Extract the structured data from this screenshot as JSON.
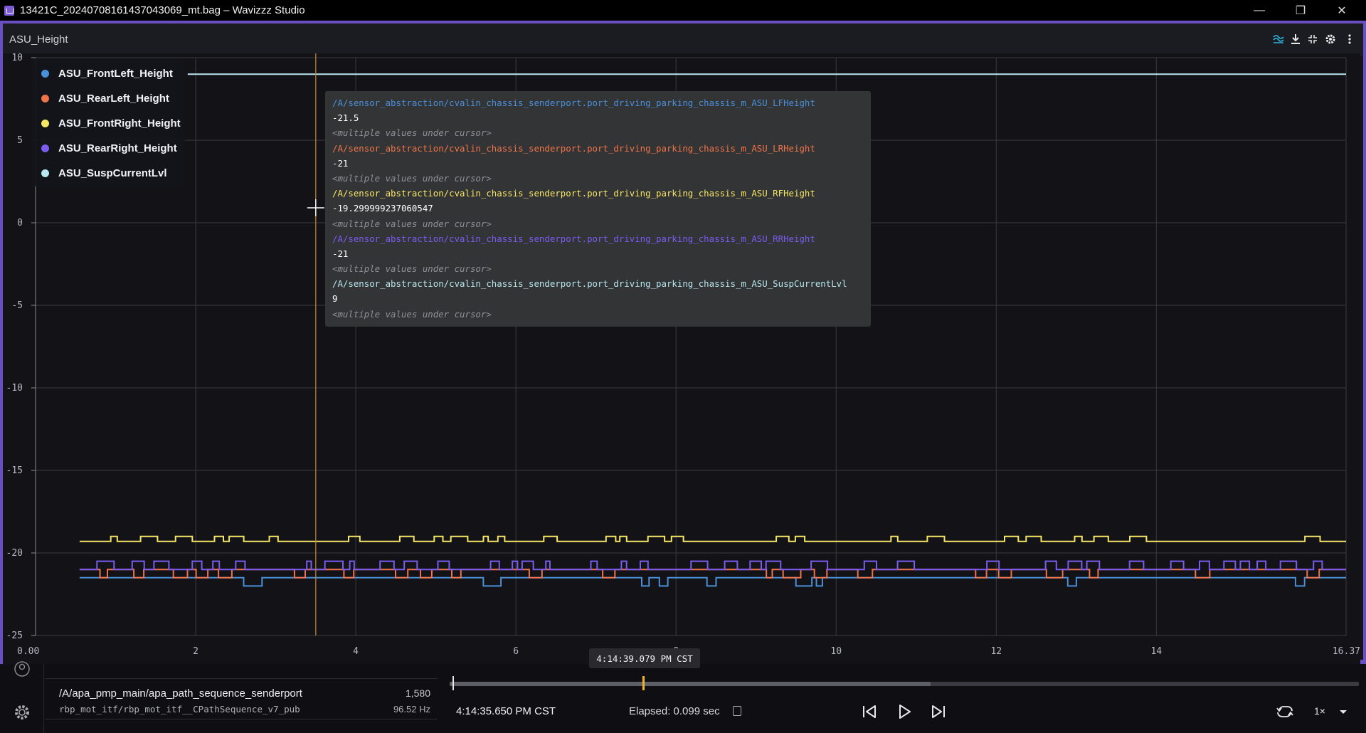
{
  "window": {
    "title": "13421C_20240708161437043069_mt.bag – Wavizzz Studio",
    "minimize_glyph": "—",
    "restore_glyph": "❐",
    "close_glyph": "✕"
  },
  "panel": {
    "title": "ASU_Height",
    "toolbar_icons": [
      "series-icon",
      "download-icon",
      "fullscreen-icon",
      "settings-icon",
      "more-icon"
    ]
  },
  "legend": {
    "items": [
      {
        "label": "ASU_FrontLeft_Height",
        "color": "#4a90d9"
      },
      {
        "label": "ASU_RearLeft_Height",
        "color": "#f0734a"
      },
      {
        "label": "ASU_FrontRight_Height",
        "color": "#f5e663"
      },
      {
        "label": "ASU_RearRight_Height",
        "color": "#7b5cf0"
      },
      {
        "label": "ASU_SuspCurrentLvl",
        "color": "#b8e7ef"
      }
    ]
  },
  "tooltip": {
    "entries": [
      {
        "path": "/A/sensor_abstraction/cvalin_chassis_senderport.port_driving_parking_chassis_m_ASU_LFHeight",
        "value": "-21.5",
        "note": "<multiple values under cursor>",
        "color": "#4a90d9"
      },
      {
        "path": "/A/sensor_abstraction/cvalin_chassis_senderport.port_driving_parking_chassis_m_ASU_LRHeight",
        "value": "-21",
        "note": "<multiple values under cursor>",
        "color": "#f0734a"
      },
      {
        "path": "/A/sensor_abstraction/cvalin_chassis_senderport.port_driving_parking_chassis_m_ASU_RFHeight",
        "value": "-19.299999237060547",
        "note": "<multiple values under cursor>",
        "color": "#f5e663"
      },
      {
        "path": "/A/sensor_abstraction/cvalin_chassis_senderport.port_driving_parking_chassis_m_ASU_RRHeight",
        "value": "-21",
        "note": "<multiple values under cursor>",
        "color": "#7b5cf0"
      },
      {
        "path": "/A/sensor_abstraction/cvalin_chassis_senderport.port_driving_parking_chassis_m_ASU_SuspCurrentLvl",
        "value": "9",
        "note": "<multiple values under cursor>",
        "color": "#b8e7ef"
      }
    ]
  },
  "chart_data": {
    "type": "line",
    "title": "ASU_Height",
    "xlim": [
      0.0,
      16.37
    ],
    "ylim": [
      -25,
      10
    ],
    "x_ticks": [
      "0.00",
      "2",
      "4",
      "6",
      "8",
      "10",
      "12",
      "14",
      "16.37"
    ],
    "y_ticks": [
      "10",
      "5",
      "0",
      "-5",
      "-10",
      "-15",
      "-20",
      "-25"
    ],
    "grid": true,
    "legend_position": "top-left",
    "cursor_x": 3.5,
    "series": [
      {
        "name": "ASU_FrontLeft_Height",
        "base": -21.5,
        "alt": -22,
        "color": "#4a90d9",
        "x": [
          0.55,
          16.37
        ],
        "note": "mostly -21.5 with occasional dips to -22"
      },
      {
        "name": "ASU_RearLeft_Height",
        "base": -21,
        "alt": -21.5,
        "color": "#f0734a",
        "x": [
          0.55,
          16.37
        ],
        "note": "mostly -21 with frequent dips to -21.5"
      },
      {
        "name": "ASU_FrontRight_Height",
        "base": -19.3,
        "alt": -19,
        "color": "#f5e663",
        "x": [
          0.55,
          16.37
        ],
        "note": "mostly -19.3 with frequent steps up to -19"
      },
      {
        "name": "ASU_RearRight_Height",
        "base": -21,
        "alt": -20.5,
        "color": "#7b5cf0",
        "x": [
          0.55,
          16.37
        ],
        "note": "mostly -21 with frequent steps up to -20.5"
      },
      {
        "name": "ASU_SuspCurrentLvl",
        "base": 9,
        "alt": 9,
        "color": "#b8e7ef",
        "x": [
          1.9,
          16.37
        ],
        "note": "constant 9"
      }
    ]
  },
  "bottom": {
    "topic": {
      "name": "/A/apa_pmp_main/apa_path_sequence_senderport",
      "schema": "rbp_mot_itf/rbp_mot_itf__CPathSequence_v7_pub",
      "count": "1,580",
      "rate": "96.52 Hz"
    },
    "timeline": {
      "progress": 0.529,
      "cursor": 0.212
    },
    "hover_time": "4:14:39.079 PM CST",
    "current_time": "4:14:35.650 PM CST",
    "elapsed": "Elapsed: 0.099 sec",
    "speed": "1×",
    "controls": [
      "seek-back-icon",
      "play-icon",
      "seek-forward-icon",
      "loop-icon"
    ]
  }
}
